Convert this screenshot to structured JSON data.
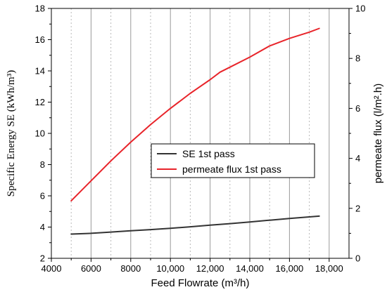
{
  "chart_data": {
    "type": "line",
    "xlabel": "Feed Flowrate (m³/h)",
    "ylabel_left": "Specific Energy SE (kWh/m³)",
    "ylabel_right": "permeate flux (l/m².h)",
    "xlim": [
      4000,
      19000
    ],
    "ylim_left": [
      2,
      18
    ],
    "ylim_right": [
      0,
      10
    ],
    "x_ticks": [
      4000,
      6000,
      8000,
      10000,
      12000,
      14000,
      16000,
      18000
    ],
    "x_tick_labels": [
      "4000",
      "6000",
      "8000",
      "10,000",
      "12,000",
      "14,000",
      "16,000",
      "18,000"
    ],
    "y_left_ticks": [
      2,
      4,
      6,
      8,
      10,
      12,
      14,
      16,
      18
    ],
    "y_left_tick_labels": [
      "2",
      "4",
      "6",
      "8",
      "10",
      "12",
      "14",
      "16",
      "18"
    ],
    "y_right_ticks": [
      0,
      2,
      4,
      6,
      8,
      10
    ],
    "y_right_tick_labels": [
      "0",
      "2",
      "4",
      "6",
      "8",
      "10"
    ],
    "grid": "vertical",
    "legend_position": "center-right",
    "series": [
      {
        "name": "SE 1st pass",
        "axis": "left",
        "color": "#333333",
        "x": [
          5000,
          6000,
          7000,
          8000,
          9000,
          10000,
          11000,
          12000,
          13000,
          14000,
          15000,
          16000,
          17000,
          17500
        ],
        "y": [
          3.55,
          3.6,
          3.68,
          3.76,
          3.84,
          3.92,
          4.02,
          4.12,
          4.22,
          4.33,
          4.44,
          4.55,
          4.65,
          4.7
        ]
      },
      {
        "name": "permeate flux 1st pass",
        "axis": "right",
        "color": "#e8242a",
        "x": [
          5000,
          6000,
          7000,
          8000,
          9000,
          10000,
          11000,
          12000,
          12500,
          13000,
          14000,
          15000,
          16000,
          17000,
          17500
        ],
        "y": [
          2.3,
          3.1,
          3.9,
          4.65,
          5.35,
          6.0,
          6.6,
          7.15,
          7.45,
          7.65,
          8.05,
          8.5,
          8.8,
          9.05,
          9.2
        ]
      }
    ]
  }
}
